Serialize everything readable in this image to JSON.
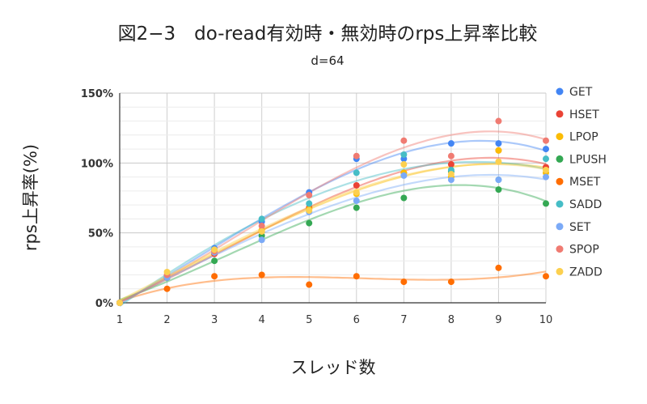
{
  "chart_data": {
    "type": "scatter",
    "title": "図2−3　do-read有効時・無効時のrps上昇率比較",
    "subtitle": "d=64",
    "xlabel": "スレッド数",
    "ylabel": "rps上昇率(%)",
    "x": [
      1,
      2,
      3,
      4,
      5,
      6,
      7,
      8,
      9,
      10
    ],
    "x_tick_labels": [
      "1",
      "2",
      "3",
      "4",
      "5",
      "6",
      "7",
      "8",
      "9",
      "10"
    ],
    "ylim": [
      0,
      150
    ],
    "y_ticks": [
      0,
      50,
      100,
      150
    ],
    "y_tick_labels": [
      "0%",
      "50%",
      "100%",
      "150%"
    ],
    "trendline": "polynomial",
    "legend_position": "right",
    "series": [
      {
        "name": "GET",
        "color": "#4285f4",
        "values": [
          0,
          19,
          39,
          58,
          79,
          103,
          103,
          114,
          114,
          110
        ]
      },
      {
        "name": "HSET",
        "color": "#ea4335",
        "values": [
          0,
          18,
          35,
          51,
          68,
          84,
          93,
          99,
          109,
          97
        ]
      },
      {
        "name": "LPOP",
        "color": "#fbbc04",
        "values": [
          0,
          19,
          36,
          52,
          67,
          78,
          93,
          90,
          109,
          93
        ]
      },
      {
        "name": "LPUSH",
        "color": "#34a853",
        "values": [
          0,
          18,
          30,
          48,
          57,
          68,
          75,
          94,
          81,
          71
        ]
      },
      {
        "name": "MSET",
        "color": "#ff6d01",
        "values": [
          0,
          10,
          19,
          20,
          13,
          19,
          15,
          15,
          25,
          19
        ]
      },
      {
        "name": "SADD",
        "color": "#46bdc6",
        "values": [
          0,
          19,
          38,
          60,
          71,
          93,
          106,
          95,
          88,
          103
        ]
      },
      {
        "name": "SET",
        "color": "#7baaf7",
        "values": [
          0,
          18,
          36,
          45,
          65,
          73,
          91,
          88,
          88,
          90
        ]
      },
      {
        "name": "SPOP",
        "color": "#f07b72",
        "values": [
          0,
          20,
          37,
          55,
          77,
          105,
          116,
          105,
          130,
          116
        ]
      },
      {
        "name": "ZADD",
        "color": "#fcd04f",
        "values": [
          0,
          22,
          38,
          51,
          66,
          79,
          99,
          92,
          101,
          95
        ]
      }
    ]
  }
}
